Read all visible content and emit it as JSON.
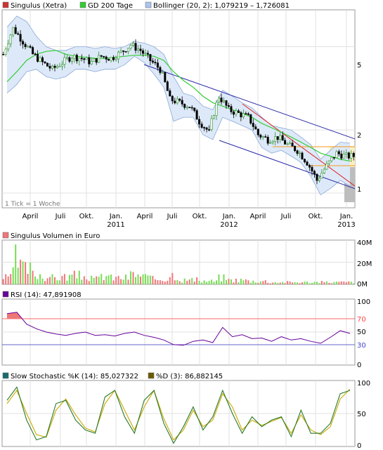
{
  "colors": {
    "background": "#ffffff",
    "panel_border": "#999999",
    "grid": "#e2e2e2",
    "up_candle": "#2d8f2d",
    "down_candle": "#000000",
    "gd200": "#33cc33",
    "bollinger_fill": "#dde9f8",
    "bollinger_line": "#8aa8d8",
    "trend_channel": "#2a2aaa",
    "trend_red": "#dd2222",
    "support_orange": "#f29a1c",
    "zone_yellow": "#fbf0c4",
    "zone_gray": "#bdbdbd",
    "volume_up": "#77dd55",
    "volume_down": "#ee7777",
    "rsi_line": "#660099",
    "rsi_overbought_line": "#ff6666",
    "rsi_oversold_line": "#6666cc",
    "stoch_k": "#2a7a2a",
    "stoch_d": "#c8a800"
  },
  "price_panel": {
    "legend": [
      {
        "label": "Singulus (Xetra)",
        "swatch": "#cc3333"
      },
      {
        "label": "GD 200 Tage",
        "swatch": "#33cc33"
      },
      {
        "label": "Bollinger (20, 2): 1,079219 – 1,726081",
        "swatch": "#aac4ee"
      }
    ],
    "note": "1 Tick = 1 Woche",
    "y_ticks": [
      "5",
      "2",
      "1"
    ],
    "x_month_labels": [
      "April",
      "Juli",
      "Okt.",
      "Jan.",
      "April",
      "Juli",
      "Okt.",
      "Jan.",
      "April",
      "Juli",
      "Okt.",
      "Jan."
    ],
    "x_year_labels": [
      "2011",
      "2012",
      "2013"
    ]
  },
  "volume_panel": {
    "legend": [
      {
        "label": "Singulus Volumen in Euro",
        "swatch": "#ee7777"
      }
    ],
    "y_ticks": [
      "40M",
      "20M",
      "0M"
    ]
  },
  "rsi_panel": {
    "legend": [
      {
        "label": "RSI (14): 47,891908",
        "swatch": "#660099"
      }
    ],
    "y_ticks": [
      "100",
      "70",
      "50",
      "30",
      "0"
    ]
  },
  "stoch_panel": {
    "legend": [
      {
        "label": "Slow Stochastic %K (14): 85,027322",
        "swatch": "#1b6b6b"
      },
      {
        "label": "%D (3): 86,882145",
        "swatch": "#6b5b00"
      }
    ],
    "y_ticks": [
      "100",
      "50",
      "0"
    ]
  },
  "chart_data": [
    {
      "type": "candlestick",
      "title": "Singulus (Xetra)",
      "scale": "log",
      "ylim": [
        0.85,
        7.5
      ],
      "x_period": [
        "2010-03",
        "2013-02"
      ],
      "x": [
        "2010-03",
        "2010-04",
        "2010-05",
        "2010-06",
        "2010-07",
        "2010-08",
        "2010-09",
        "2010-10",
        "2010-11",
        "2010-12",
        "2011-01",
        "2011-02",
        "2011-03",
        "2011-04",
        "2011-05",
        "2011-06",
        "2011-07",
        "2011-08",
        "2011-09",
        "2011-10",
        "2011-11",
        "2011-12",
        "2012-01",
        "2012-02",
        "2012-03",
        "2012-04",
        "2012-05",
        "2012-06",
        "2012-07",
        "2012-08",
        "2012-09",
        "2012-10",
        "2012-11",
        "2012-12",
        "2013-01",
        "2013-02"
      ],
      "close_monthly": [
        4.6,
        6.1,
        5.3,
        4.6,
        4.2,
        3.9,
        4.2,
        4.5,
        4.4,
        4.2,
        4.5,
        4.4,
        4.7,
        5.1,
        4.8,
        4.3,
        3.9,
        2.8,
        2.7,
        2.6,
        2.2,
        1.95,
        2.9,
        2.5,
        2.4,
        2.3,
        1.9,
        1.8,
        1.85,
        1.7,
        1.6,
        1.4,
        1.15,
        1.35,
        1.55,
        1.5
      ],
      "series": [
        {
          "name": "GD 200 Tage",
          "values": [
            3.4,
            3.8,
            4.3,
            4.6,
            4.75,
            4.8,
            4.6,
            4.5,
            4.45,
            4.4,
            4.4,
            4.45,
            4.5,
            4.55,
            4.55,
            4.5,
            4.3,
            3.8,
            3.45,
            3.2,
            2.9,
            2.7,
            2.6,
            2.5,
            2.4,
            2.3,
            2.15,
            2.05,
            1.95,
            1.85,
            1.75,
            1.65,
            1.55,
            1.5,
            1.45,
            1.42
          ]
        },
        {
          "name": "Bollinger upper",
          "values": [
            6.2,
            7.0,
            6.6,
            5.6,
            5.0,
            4.8,
            4.8,
            5.0,
            5.0,
            4.9,
            5.0,
            4.9,
            5.0,
            5.3,
            5.2,
            5.0,
            4.6,
            3.6,
            3.0,
            2.9,
            2.6,
            2.5,
            3.1,
            2.9,
            2.7,
            2.55,
            2.3,
            2.1,
            2.05,
            2.0,
            1.85,
            1.7,
            1.45,
            1.6,
            1.75,
            1.73
          ]
        },
        {
          "name": "Bollinger lower",
          "values": [
            3.0,
            3.3,
            3.8,
            3.9,
            3.6,
            3.5,
            3.6,
            3.9,
            3.9,
            3.8,
            3.9,
            3.9,
            4.1,
            4.5,
            4.2,
            3.7,
            3.2,
            2.2,
            2.3,
            2.3,
            1.9,
            1.8,
            2.3,
            2.2,
            2.1,
            2.0,
            1.65,
            1.55,
            1.6,
            1.5,
            1.4,
            1.2,
            0.98,
            1.05,
            1.15,
            1.08
          ]
        }
      ]
    },
    {
      "type": "bar",
      "title": "Singulus Volumen in Euro",
      "unit": "M",
      "ylim": [
        0,
        40
      ],
      "x": [
        "2010-03",
        "2010-04",
        "2010-05",
        "2010-06",
        "2010-07",
        "2010-08",
        "2010-09",
        "2010-10",
        "2010-11",
        "2010-12",
        "2011-01",
        "2011-02",
        "2011-03",
        "2011-04",
        "2011-05",
        "2011-06",
        "2011-07",
        "2011-08",
        "2011-09",
        "2011-10",
        "2011-11",
        "2011-12",
        "2012-01",
        "2012-02",
        "2012-03",
        "2012-04",
        "2012-05",
        "2012-06",
        "2012-07",
        "2012-08",
        "2012-09",
        "2012-10",
        "2012-11",
        "2012-12",
        "2013-01",
        "2013-02"
      ],
      "values": [
        6,
        18,
        14,
        9,
        7,
        6,
        7,
        8,
        7,
        5,
        8,
        6,
        6,
        9,
        7,
        5,
        5,
        9,
        4,
        4,
        3,
        3,
        6,
        4,
        4,
        3,
        3,
        2,
        2,
        2,
        2,
        2,
        2,
        2,
        2,
        2
      ],
      "peak": 36
    },
    {
      "type": "line",
      "title": "RSI (14)",
      "ylim": [
        0,
        100
      ],
      "reference_lines": [
        70,
        30
      ],
      "x": [
        "2010-03",
        "2010-04",
        "2010-05",
        "2010-06",
        "2010-07",
        "2010-08",
        "2010-09",
        "2010-10",
        "2010-11",
        "2010-12",
        "2011-01",
        "2011-02",
        "2011-03",
        "2011-04",
        "2011-05",
        "2011-06",
        "2011-07",
        "2011-08",
        "2011-09",
        "2011-10",
        "2011-11",
        "2011-12",
        "2012-01",
        "2012-02",
        "2012-03",
        "2012-04",
        "2012-05",
        "2012-06",
        "2012-07",
        "2012-08",
        "2012-09",
        "2012-10",
        "2012-11",
        "2012-12",
        "2013-01",
        "2013-02"
      ],
      "values": [
        78,
        80,
        62,
        55,
        50,
        47,
        45,
        48,
        50,
        45,
        46,
        44,
        48,
        50,
        45,
        42,
        38,
        31,
        30,
        36,
        38,
        34,
        57,
        43,
        46,
        40,
        41,
        36,
        43,
        38,
        40,
        36,
        33,
        42,
        52,
        48
      ]
    },
    {
      "type": "line",
      "title": "Slow Stochastic",
      "ylim": [
        0,
        100
      ],
      "x": [
        "2010-03",
        "2010-04",
        "2010-05",
        "2010-06",
        "2010-07",
        "2010-08",
        "2010-09",
        "2010-10",
        "2010-11",
        "2010-12",
        "2011-01",
        "2011-02",
        "2011-03",
        "2011-04",
        "2011-05",
        "2011-06",
        "2011-07",
        "2011-08",
        "2011-09",
        "2011-10",
        "2011-11",
        "2011-12",
        "2012-01",
        "2012-02",
        "2012-03",
        "2012-04",
        "2012-05",
        "2012-06",
        "2012-07",
        "2012-08",
        "2012-09",
        "2012-10",
        "2012-11",
        "2012-12",
        "2013-01",
        "2013-02"
      ],
      "series": [
        {
          "name": "%K (14)",
          "values": [
            70,
            90,
            40,
            10,
            15,
            65,
            70,
            40,
            25,
            20,
            75,
            85,
            45,
            20,
            70,
            85,
            35,
            5,
            30,
            60,
            25,
            45,
            85,
            50,
            20,
            45,
            30,
            40,
            45,
            15,
            55,
            20,
            20,
            35,
            80,
            85
          ]
        },
        {
          "name": "%D (3)",
          "values": [
            65,
            85,
            50,
            18,
            14,
            55,
            72,
            48,
            28,
            22,
            65,
            85,
            55,
            25,
            60,
            85,
            42,
            10,
            25,
            55,
            30,
            40,
            80,
            60,
            25,
            40,
            32,
            38,
            44,
            20,
            48,
            25,
            18,
            30,
            72,
            87
          ]
        }
      ]
    }
  ]
}
